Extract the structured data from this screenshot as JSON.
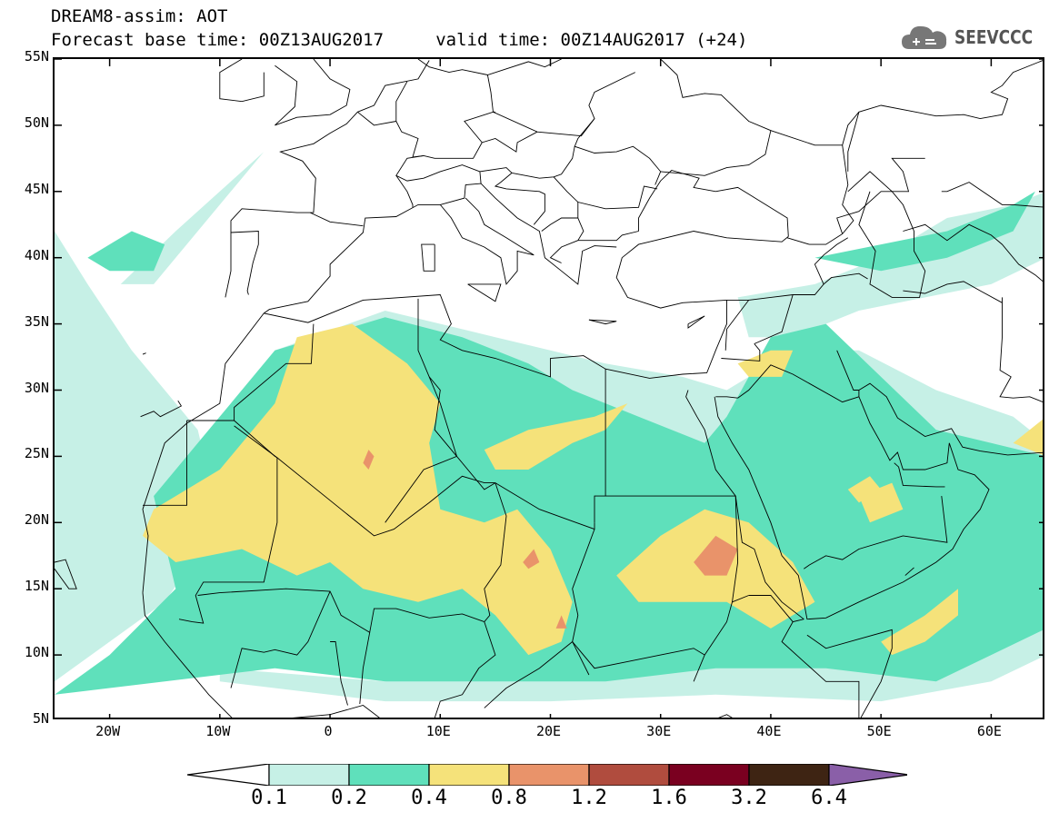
{
  "title_line1": "DREAM8-assim: AOT",
  "title_line2": "Forecast base time: 00Z13AUG2017     valid time: 00Z14AUG2017 (+24)",
  "logo": {
    "text": "SEEVCCC",
    "icon": "cloud-logo-icon"
  },
  "map": {
    "variable": "AOT",
    "lon_range": [
      -25,
      65
    ],
    "lat_range": [
      5,
      55
    ],
    "lat_ticks": [
      {
        "value": 55,
        "label": "55N"
      },
      {
        "value": 50,
        "label": "50N"
      },
      {
        "value": 45,
        "label": "45N"
      },
      {
        "value": 40,
        "label": "40N"
      },
      {
        "value": 35,
        "label": "35N"
      },
      {
        "value": 30,
        "label": "30N"
      },
      {
        "value": 25,
        "label": "25N"
      },
      {
        "value": 20,
        "label": "20N"
      },
      {
        "value": 15,
        "label": "15N"
      },
      {
        "value": 10,
        "label": "10N"
      },
      {
        "value": 5,
        "label": "5N"
      }
    ],
    "lon_ticks": [
      {
        "value": -20,
        "label": "20W"
      },
      {
        "value": -10,
        "label": "10W"
      },
      {
        "value": 0,
        "label": "0"
      },
      {
        "value": 10,
        "label": "10E"
      },
      {
        "value": 20,
        "label": "20E"
      },
      {
        "value": 30,
        "label": "30E"
      },
      {
        "value": 40,
        "label": "40E"
      },
      {
        "value": 50,
        "label": "50E"
      },
      {
        "value": 60,
        "label": "60E"
      }
    ],
    "land_color": "#ffffff",
    "border_color": "#000000"
  },
  "colorbar": {
    "levels": [
      "0.1",
      "0.2",
      "0.4",
      "0.8",
      "1.2",
      "1.6",
      "3.2",
      "6.4"
    ],
    "colors": [
      "#ffffff",
      "#c6f0e6",
      "#5fe0bb",
      "#f5e27a",
      "#e9936a",
      "#b04c3e",
      "#7a0020",
      "#3e2413",
      "#8a5fa8"
    ]
  },
  "fields": [
    {
      "level": "0.1-0.2",
      "color": "#c6f0e6",
      "regions": [
        [
          [
            -25,
            8
          ],
          [
            -20,
            11
          ],
          [
            -15,
            14
          ],
          [
            -10,
            20
          ],
          [
            -12,
            27
          ],
          [
            -18,
            33
          ],
          [
            -22,
            38
          ],
          [
            -25,
            42
          ]
        ],
        [
          [
            -19,
            38
          ],
          [
            -14,
            42
          ],
          [
            -10,
            45
          ],
          [
            -6,
            48
          ],
          [
            -4,
            50
          ],
          [
            -8,
            46
          ],
          [
            -12,
            42
          ],
          [
            -16,
            38
          ]
        ],
        [
          [
            -10,
            8
          ],
          [
            5,
            6.5
          ],
          [
            20,
            6.5
          ],
          [
            35,
            7
          ],
          [
            50,
            6.5
          ],
          [
            60,
            8
          ],
          [
            65,
            10
          ],
          [
            65,
            22
          ],
          [
            60,
            22
          ],
          [
            55,
            18
          ],
          [
            48,
            15
          ],
          [
            40,
            14
          ],
          [
            30,
            12
          ],
          [
            20,
            10
          ],
          [
            5,
            8
          ],
          [
            -10,
            9
          ]
        ],
        [
          [
            37,
            37
          ],
          [
            44,
            38
          ],
          [
            50,
            40
          ],
          [
            56,
            43
          ],
          [
            62,
            44
          ],
          [
            65,
            45
          ],
          [
            65,
            40
          ],
          [
            60,
            38
          ],
          [
            54,
            37
          ],
          [
            48,
            36
          ],
          [
            42,
            34
          ],
          [
            38,
            34
          ]
        ],
        [
          [
            -15,
            23
          ],
          [
            -5,
            33
          ],
          [
            5,
            36
          ],
          [
            15,
            34
          ],
          [
            25,
            32
          ],
          [
            32,
            31
          ],
          [
            36,
            30
          ],
          [
            42,
            33
          ],
          [
            48,
            33
          ],
          [
            55,
            30
          ],
          [
            62,
            28
          ],
          [
            65,
            26
          ],
          [
            65,
            22
          ],
          [
            55,
            24
          ],
          [
            40,
            20
          ],
          [
            30,
            20
          ],
          [
            20,
            18
          ],
          [
            5,
            20
          ],
          [
            -10,
            20
          ]
        ]
      ]
    },
    {
      "level": "0.2-0.4",
      "color": "#5fe0bb",
      "regions": [
        [
          [
            -25,
            7
          ],
          [
            -20,
            10
          ],
          [
            -14,
            15
          ],
          [
            -16,
            22
          ],
          [
            -12,
            26
          ],
          [
            -5,
            33
          ],
          [
            5,
            35.5
          ],
          [
            12,
            34
          ],
          [
            18,
            32
          ],
          [
            22,
            30
          ],
          [
            28,
            28
          ],
          [
            34,
            26
          ],
          [
            36,
            28
          ],
          [
            40,
            34
          ],
          [
            45,
            35
          ],
          [
            50,
            31
          ],
          [
            55,
            27
          ],
          [
            60,
            26
          ],
          [
            65,
            25
          ],
          [
            65,
            12
          ],
          [
            60,
            10
          ],
          [
            55,
            8
          ],
          [
            45,
            9
          ],
          [
            35,
            9
          ],
          [
            25,
            8
          ],
          [
            15,
            8
          ],
          [
            5,
            8
          ],
          [
            -5,
            9
          ],
          [
            -15,
            8
          ]
        ],
        [
          [
            -22,
            40
          ],
          [
            -18,
            42
          ],
          [
            -15,
            41
          ],
          [
            -16,
            39
          ],
          [
            -20,
            39
          ]
        ],
        [
          [
            44,
            40
          ],
          [
            50,
            41
          ],
          [
            56,
            42
          ],
          [
            62,
            44
          ],
          [
            64,
            45
          ],
          [
            62,
            42
          ],
          [
            56,
            40
          ],
          [
            50,
            39
          ]
        ]
      ]
    },
    {
      "level": "0.4-0.8",
      "color": "#f5e27a",
      "regions": [
        [
          [
            -16,
            21
          ],
          [
            -10,
            24
          ],
          [
            -5,
            29
          ],
          [
            -3,
            34
          ],
          [
            2,
            35
          ],
          [
            7,
            32
          ],
          [
            10,
            29
          ],
          [
            9,
            26
          ],
          [
            10,
            21
          ],
          [
            14,
            20
          ],
          [
            17,
            21
          ],
          [
            20,
            18
          ],
          [
            22,
            14
          ],
          [
            21,
            11
          ],
          [
            18,
            10
          ],
          [
            15,
            13
          ],
          [
            12,
            15
          ],
          [
            8,
            14
          ],
          [
            3,
            15
          ],
          [
            0,
            17
          ],
          [
            -3,
            16
          ],
          [
            -8,
            18
          ],
          [
            -14,
            17
          ],
          [
            -17,
            19
          ]
        ],
        [
          [
            14,
            25.5
          ],
          [
            18,
            27
          ],
          [
            24,
            28
          ],
          [
            27,
            29
          ],
          [
            25,
            27
          ],
          [
            22,
            26
          ],
          [
            18,
            24
          ],
          [
            15,
            24
          ]
        ],
        [
          [
            26,
            16
          ],
          [
            30,
            19
          ],
          [
            34,
            21
          ],
          [
            38,
            20
          ],
          [
            42,
            17
          ],
          [
            44,
            14
          ],
          [
            40,
            12
          ],
          [
            36,
            14
          ],
          [
            32,
            14
          ],
          [
            28,
            14
          ]
        ],
        [
          [
            37,
            32
          ],
          [
            40,
            33
          ],
          [
            42,
            33
          ],
          [
            41,
            31
          ],
          [
            38,
            31
          ]
        ],
        [
          [
            48,
            22
          ],
          [
            51,
            23
          ],
          [
            52,
            21
          ],
          [
            49,
            20
          ]
        ],
        [
          [
            50,
            11
          ],
          [
            54,
            13
          ],
          [
            57,
            15
          ],
          [
            57,
            13
          ],
          [
            54,
            11
          ],
          [
            51,
            10
          ]
        ],
        [
          [
            47,
            22.5
          ],
          [
            49,
            23.5
          ],
          [
            50,
            22.5
          ],
          [
            48,
            21.5
          ]
        ],
        [
          [
            62,
            26
          ],
          [
            65,
            28
          ],
          [
            65,
            25
          ]
        ]
      ]
    },
    {
      "level": "0.8-1.2",
      "color": "#e9936a",
      "regions": [
        [
          [
            33,
            17
          ],
          [
            35,
            19
          ],
          [
            37,
            18
          ],
          [
            36,
            16
          ],
          [
            34,
            16
          ]
        ],
        [
          [
            17.5,
            17
          ],
          [
            18.5,
            18
          ],
          [
            19,
            17
          ],
          [
            18,
            16.5
          ]
        ],
        [
          [
            3,
            24.5
          ],
          [
            3.5,
            25.5
          ],
          [
            4,
            25
          ],
          [
            3.5,
            24
          ]
        ],
        [
          [
            20.5,
            12
          ],
          [
            21,
            13
          ],
          [
            21.5,
            12
          ]
        ]
      ]
    }
  ]
}
